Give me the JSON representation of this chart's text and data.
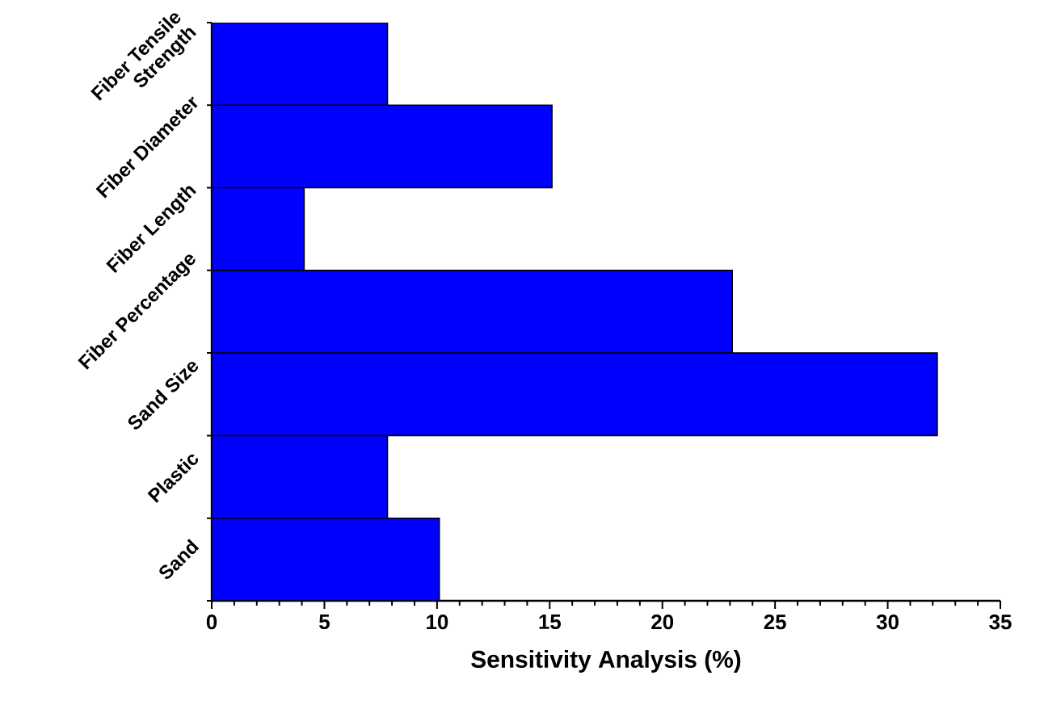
{
  "chart_data": {
    "type": "bar",
    "orientation": "horizontal",
    "xlabel": "Sensitivity Analysis (%)",
    "categories": [
      "Fiber Tensile Strength",
      "Fiber Diameter",
      "Fiber Length",
      "Fiber Percentage",
      "Sand Size",
      "Plastic",
      "Sand"
    ],
    "values": [
      7.8,
      15.1,
      4.1,
      23.1,
      32.2,
      7.8,
      10.1
    ],
    "color": "#0000ff",
    "xlim": [
      0,
      35
    ],
    "xticks": [
      0,
      5,
      10,
      15,
      20,
      25,
      30,
      35
    ],
    "grid": false
  }
}
